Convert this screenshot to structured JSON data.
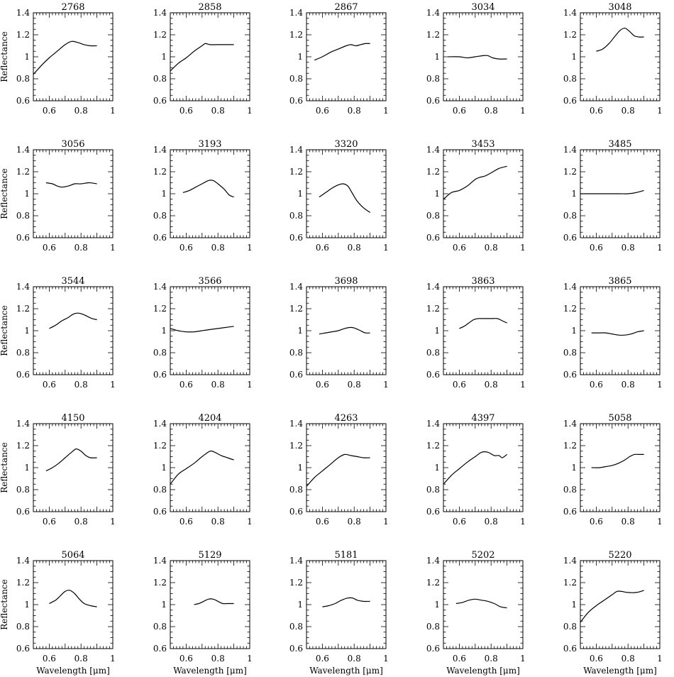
{
  "figure": {
    "rows": 5,
    "cols": 5,
    "ylabel": "Reflectance",
    "xlabel": "Wavelength [μm]",
    "yticks": [
      0.6,
      0.8,
      1,
      1.2,
      1.4
    ],
    "ytick_labels": [
      "0.6",
      "0.8",
      "1",
      "1.2",
      "1.4"
    ],
    "xticks": [
      0.6,
      0.8,
      1
    ],
    "xtick_labels": [
      "0.6",
      "0.8",
      "1"
    ]
  },
  "chart_data": [
    {
      "type": "line",
      "title": "2768",
      "xlim": [
        0.5,
        1.0
      ],
      "ylim": [
        0.6,
        1.4
      ],
      "x": [
        0.5,
        0.55,
        0.6,
        0.65,
        0.7,
        0.74,
        0.78,
        0.82,
        0.86,
        0.9
      ],
      "y": [
        0.84,
        0.92,
        0.99,
        1.05,
        1.11,
        1.14,
        1.13,
        1.11,
        1.1,
        1.1
      ]
    },
    {
      "type": "line",
      "title": "2858",
      "xlim": [
        0.5,
        1.0
      ],
      "ylim": [
        0.6,
        1.4
      ],
      "x": [
        0.5,
        0.55,
        0.6,
        0.65,
        0.7,
        0.72,
        0.75,
        0.8,
        0.85,
        0.9
      ],
      "y": [
        0.87,
        0.94,
        0.99,
        1.05,
        1.1,
        1.12,
        1.11,
        1.11,
        1.11,
        1.11
      ]
    },
    {
      "type": "line",
      "title": "2867",
      "xlim": [
        0.5,
        1.0
      ],
      "ylim": [
        0.6,
        1.4
      ],
      "x": [
        0.55,
        0.6,
        0.65,
        0.7,
        0.75,
        0.78,
        0.81,
        0.84,
        0.87,
        0.9
      ],
      "y": [
        0.97,
        1.0,
        1.04,
        1.07,
        1.1,
        1.11,
        1.1,
        1.11,
        1.12,
        1.12
      ]
    },
    {
      "type": "line",
      "title": "3034",
      "xlim": [
        0.5,
        1.0
      ],
      "ylim": [
        0.6,
        1.4
      ],
      "x": [
        0.53,
        0.6,
        0.65,
        0.7,
        0.75,
        0.78,
        0.81,
        0.85,
        0.9
      ],
      "y": [
        1.0,
        1.0,
        0.99,
        1.0,
        1.01,
        1.01,
        0.99,
        0.98,
        0.98
      ]
    },
    {
      "type": "line",
      "title": "3048",
      "xlim": [
        0.5,
        1.0
      ],
      "ylim": [
        0.6,
        1.4
      ],
      "x": [
        0.6,
        0.64,
        0.68,
        0.72,
        0.75,
        0.78,
        0.81,
        0.84,
        0.87,
        0.9
      ],
      "y": [
        1.05,
        1.07,
        1.12,
        1.19,
        1.24,
        1.26,
        1.23,
        1.19,
        1.18,
        1.18
      ]
    },
    {
      "type": "line",
      "title": "3056",
      "xlim": [
        0.5,
        1.0
      ],
      "ylim": [
        0.6,
        1.4
      ],
      "x": [
        0.58,
        0.62,
        0.65,
        0.68,
        0.72,
        0.76,
        0.8,
        0.85,
        0.9
      ],
      "y": [
        1.1,
        1.09,
        1.07,
        1.06,
        1.07,
        1.09,
        1.09,
        1.1,
        1.09
      ]
    },
    {
      "type": "line",
      "title": "3193",
      "xlim": [
        0.5,
        1.0
      ],
      "ylim": [
        0.6,
        1.4
      ],
      "x": [
        0.58,
        0.62,
        0.66,
        0.7,
        0.74,
        0.77,
        0.8,
        0.84,
        0.87,
        0.9
      ],
      "y": [
        1.01,
        1.03,
        1.06,
        1.09,
        1.12,
        1.12,
        1.09,
        1.04,
        0.99,
        0.97
      ]
    },
    {
      "type": "line",
      "title": "3320",
      "xlim": [
        0.5,
        1.0
      ],
      "ylim": [
        0.6,
        1.4
      ],
      "x": [
        0.58,
        0.62,
        0.66,
        0.7,
        0.73,
        0.76,
        0.79,
        0.82,
        0.86,
        0.9
      ],
      "y": [
        0.97,
        1.01,
        1.05,
        1.08,
        1.09,
        1.07,
        1.0,
        0.93,
        0.87,
        0.83
      ]
    },
    {
      "type": "line",
      "title": "3453",
      "xlim": [
        0.5,
        1.0
      ],
      "ylim": [
        0.6,
        1.4
      ],
      "x": [
        0.5,
        0.55,
        0.6,
        0.65,
        0.7,
        0.73,
        0.76,
        0.8,
        0.85,
        0.9
      ],
      "y": [
        0.95,
        1.01,
        1.03,
        1.07,
        1.13,
        1.15,
        1.16,
        1.19,
        1.23,
        1.25
      ]
    },
    {
      "type": "line",
      "title": "3485",
      "xlim": [
        0.5,
        1.0
      ],
      "ylim": [
        0.6,
        1.4
      ],
      "x": [
        0.5,
        0.55,
        0.6,
        0.65,
        0.7,
        0.75,
        0.8,
        0.85,
        0.9
      ],
      "y": [
        1.0,
        1.0,
        1.0,
        1.0,
        1.0,
        1.0,
        1.0,
        1.01,
        1.03
      ]
    },
    {
      "type": "line",
      "title": "3544",
      "xlim": [
        0.5,
        1.0
      ],
      "ylim": [
        0.6,
        1.4
      ],
      "x": [
        0.6,
        0.64,
        0.68,
        0.72,
        0.75,
        0.78,
        0.81,
        0.84,
        0.87,
        0.9
      ],
      "y": [
        1.02,
        1.05,
        1.09,
        1.12,
        1.15,
        1.16,
        1.15,
        1.13,
        1.11,
        1.1
      ]
    },
    {
      "type": "line",
      "title": "3566",
      "xlim": [
        0.5,
        1.0
      ],
      "ylim": [
        0.6,
        1.4
      ],
      "x": [
        0.5,
        0.55,
        0.6,
        0.65,
        0.7,
        0.75,
        0.8,
        0.85,
        0.9
      ],
      "y": [
        1.02,
        1.0,
        0.99,
        0.99,
        1.0,
        1.01,
        1.02,
        1.03,
        1.04
      ]
    },
    {
      "type": "line",
      "title": "3698",
      "xlim": [
        0.5,
        1.0
      ],
      "ylim": [
        0.6,
        1.4
      ],
      "x": [
        0.58,
        0.62,
        0.66,
        0.7,
        0.74,
        0.78,
        0.81,
        0.84,
        0.87,
        0.9
      ],
      "y": [
        0.97,
        0.98,
        0.99,
        1.0,
        1.02,
        1.03,
        1.02,
        1.0,
        0.98,
        0.98
      ]
    },
    {
      "type": "line",
      "title": "3863",
      "xlim": [
        0.5,
        1.0
      ],
      "ylim": [
        0.6,
        1.4
      ],
      "x": [
        0.6,
        0.63,
        0.66,
        0.69,
        0.72,
        0.75,
        0.8,
        0.84,
        0.87,
        0.9
      ],
      "y": [
        1.02,
        1.04,
        1.07,
        1.1,
        1.11,
        1.11,
        1.11,
        1.11,
        1.09,
        1.07
      ]
    },
    {
      "type": "line",
      "title": "3865",
      "xlim": [
        0.5,
        1.0
      ],
      "ylim": [
        0.6,
        1.4
      ],
      "x": [
        0.57,
        0.62,
        0.66,
        0.7,
        0.74,
        0.78,
        0.82,
        0.86,
        0.9
      ],
      "y": [
        0.98,
        0.98,
        0.98,
        0.97,
        0.96,
        0.96,
        0.97,
        0.99,
        1.0
      ]
    },
    {
      "type": "line",
      "title": "4150",
      "xlim": [
        0.5,
        1.0
      ],
      "ylim": [
        0.6,
        1.4
      ],
      "x": [
        0.58,
        0.62,
        0.66,
        0.7,
        0.74,
        0.77,
        0.8,
        0.83,
        0.86,
        0.9
      ],
      "y": [
        0.97,
        1.0,
        1.04,
        1.09,
        1.14,
        1.17,
        1.15,
        1.11,
        1.09,
        1.09
      ]
    },
    {
      "type": "line",
      "title": "4204",
      "xlim": [
        0.5,
        1.0
      ],
      "ylim": [
        0.6,
        1.4
      ],
      "x": [
        0.5,
        0.55,
        0.6,
        0.65,
        0.7,
        0.75,
        0.78,
        0.82,
        0.86,
        0.9
      ],
      "y": [
        0.85,
        0.94,
        0.99,
        1.04,
        1.1,
        1.15,
        1.14,
        1.11,
        1.09,
        1.07
      ]
    },
    {
      "type": "line",
      "title": "4263",
      "xlim": [
        0.5,
        1.0
      ],
      "ylim": [
        0.6,
        1.4
      ],
      "x": [
        0.5,
        0.55,
        0.6,
        0.65,
        0.7,
        0.74,
        0.78,
        0.82,
        0.86,
        0.9
      ],
      "y": [
        0.83,
        0.91,
        0.97,
        1.03,
        1.09,
        1.12,
        1.11,
        1.1,
        1.09,
        1.09
      ]
    },
    {
      "type": "line",
      "title": "4397",
      "xlim": [
        0.5,
        1.0
      ],
      "ylim": [
        0.6,
        1.4
      ],
      "x": [
        0.5,
        0.55,
        0.6,
        0.65,
        0.7,
        0.74,
        0.78,
        0.82,
        0.85,
        0.87,
        0.9
      ],
      "y": [
        0.85,
        0.93,
        0.99,
        1.05,
        1.1,
        1.14,
        1.14,
        1.11,
        1.11,
        1.09,
        1.12
      ]
    },
    {
      "type": "line",
      "title": "5058",
      "xlim": [
        0.5,
        1.0
      ],
      "ylim": [
        0.6,
        1.4
      ],
      "x": [
        0.57,
        0.62,
        0.66,
        0.7,
        0.74,
        0.78,
        0.81,
        0.84,
        0.87,
        0.9
      ],
      "y": [
        1.0,
        1.0,
        1.01,
        1.02,
        1.04,
        1.07,
        1.1,
        1.12,
        1.12,
        1.12
      ]
    },
    {
      "type": "line",
      "title": "5064",
      "xlim": [
        0.5,
        1.0
      ],
      "ylim": [
        0.6,
        1.4
      ],
      "x": [
        0.6,
        0.64,
        0.67,
        0.7,
        0.73,
        0.76,
        0.79,
        0.82,
        0.86,
        0.9
      ],
      "y": [
        1.01,
        1.04,
        1.08,
        1.12,
        1.13,
        1.1,
        1.05,
        1.01,
        0.99,
        0.98
      ]
    },
    {
      "type": "line",
      "title": "5129",
      "xlim": [
        0.5,
        1.0
      ],
      "ylim": [
        0.6,
        1.4
      ],
      "x": [
        0.65,
        0.68,
        0.71,
        0.74,
        0.77,
        0.8,
        0.83,
        0.86,
        0.9
      ],
      "y": [
        1.0,
        1.01,
        1.03,
        1.05,
        1.05,
        1.03,
        1.01,
        1.01,
        1.01
      ]
    },
    {
      "type": "line",
      "title": "5181",
      "xlim": [
        0.5,
        1.0
      ],
      "ylim": [
        0.6,
        1.4
      ],
      "x": [
        0.6,
        0.64,
        0.68,
        0.72,
        0.76,
        0.79,
        0.82,
        0.86,
        0.9
      ],
      "y": [
        0.98,
        0.99,
        1.01,
        1.04,
        1.06,
        1.06,
        1.04,
        1.03,
        1.03
      ]
    },
    {
      "type": "line",
      "title": "5202",
      "xlim": [
        0.5,
        1.0
      ],
      "ylim": [
        0.6,
        1.4
      ],
      "x": [
        0.58,
        0.62,
        0.66,
        0.7,
        0.74,
        0.78,
        0.82,
        0.86,
        0.9
      ],
      "y": [
        1.01,
        1.02,
        1.04,
        1.05,
        1.04,
        1.03,
        1.01,
        0.98,
        0.97
      ]
    },
    {
      "type": "line",
      "title": "5220",
      "xlim": [
        0.5,
        1.0
      ],
      "ylim": [
        0.6,
        1.4
      ],
      "x": [
        0.5,
        0.55,
        0.6,
        0.65,
        0.7,
        0.73,
        0.76,
        0.8,
        0.85,
        0.88,
        0.9
      ],
      "y": [
        0.84,
        0.93,
        0.99,
        1.04,
        1.09,
        1.12,
        1.12,
        1.11,
        1.11,
        1.12,
        1.13
      ]
    }
  ]
}
